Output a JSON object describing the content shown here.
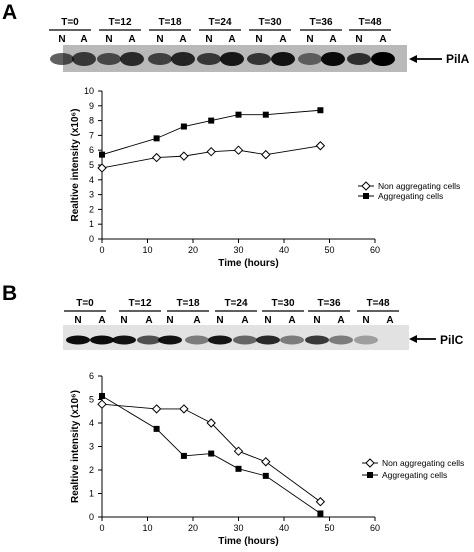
{
  "panels": [
    {
      "letter": "A",
      "protein": "PilA",
      "timepoints": [
        "T=0",
        "T=12",
        "T=18",
        "T=24",
        "T=30",
        "T=36",
        "T=48"
      ],
      "lanes": [
        "N",
        "A"
      ],
      "blot": {
        "band_intensity_N": [
          0.62,
          0.62,
          0.66,
          0.7,
          0.72,
          0.5,
          0.75
        ],
        "band_intensity_A": [
          0.7,
          0.78,
          0.8,
          0.88,
          0.9,
          0.95,
          1.0
        ]
      }
    },
    {
      "letter": "B",
      "protein": "PilC",
      "timepoints": [
        "T=0",
        "T=12",
        "T=18",
        "T=24",
        "T=30",
        "T=36",
        "T=48"
      ],
      "lanes": [
        "N",
        "A"
      ],
      "blot": {
        "band_intensity_N": [
          0.95,
          0.92,
          0.92,
          0.9,
          0.82,
          0.75,
          0.3
        ],
        "band_intensity_A": [
          0.95,
          0.65,
          0.45,
          0.55,
          0.45,
          0.45,
          0.0
        ]
      }
    }
  ],
  "chart_data": [
    {
      "type": "line",
      "xlabel": "Time (hours)",
      "ylabel": "Realtive intensity (x10⁶)",
      "xlim": [
        0,
        60
      ],
      "ylim": [
        0,
        10
      ],
      "xticks": [
        0,
        10,
        20,
        30,
        40,
        50,
        60
      ],
      "yticks": [
        0,
        1,
        2,
        3,
        4,
        5,
        6,
        7,
        8,
        9,
        10
      ],
      "grid": false,
      "legend_position": "right",
      "series": [
        {
          "name": "Non aggregating cells",
          "marker": "open-diamond",
          "x": [
            0,
            12,
            18,
            24,
            30,
            36,
            48
          ],
          "y": [
            4.8,
            5.5,
            5.6,
            5.9,
            6.0,
            5.7,
            6.3
          ]
        },
        {
          "name": "Aggregating cells",
          "marker": "filled-square",
          "x": [
            0,
            12,
            18,
            24,
            30,
            36,
            48
          ],
          "y": [
            5.7,
            6.8,
            7.6,
            8.0,
            8.4,
            8.4,
            8.7
          ]
        }
      ]
    },
    {
      "type": "line",
      "xlabel": "Time (hours)",
      "ylabel": "Realtive intensity (x10⁶)",
      "xlim": [
        0,
        60
      ],
      "ylim": [
        0,
        6
      ],
      "xticks": [
        0,
        10,
        20,
        30,
        40,
        50,
        60
      ],
      "yticks": [
        0,
        1,
        2,
        3,
        4,
        5,
        6
      ],
      "grid": false,
      "legend_position": "right",
      "series": [
        {
          "name": "Non aggregating cells",
          "marker": "open-diamond",
          "x": [
            0,
            12,
            18,
            24,
            30,
            36,
            48
          ],
          "y": [
            4.8,
            4.6,
            4.6,
            4.0,
            2.8,
            2.35,
            0.65
          ]
        },
        {
          "name": "Aggregating cells",
          "marker": "filled-square",
          "x": [
            0,
            12,
            18,
            24,
            30,
            36,
            48
          ],
          "y": [
            5.15,
            3.75,
            2.6,
            2.7,
            2.05,
            1.75,
            0.15
          ]
        }
      ]
    }
  ]
}
